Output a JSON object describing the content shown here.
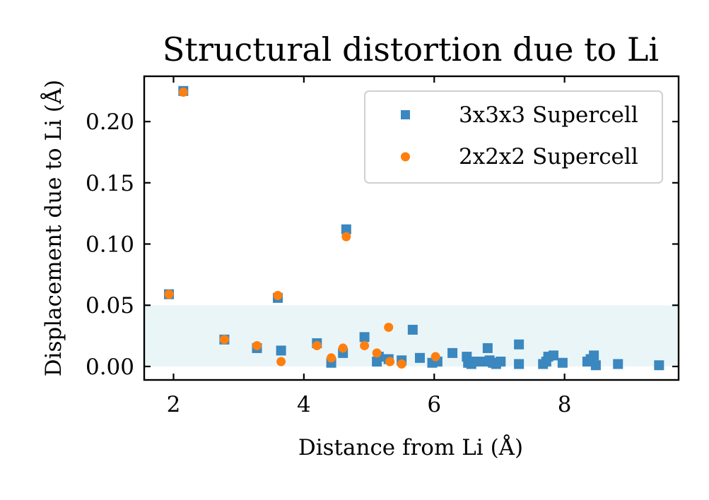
{
  "chart_data": {
    "type": "scatter",
    "title": "Structural distortion due to Li",
    "xlabel": "Distance from Li (Å)",
    "ylabel": "Displacement due to Li (Å)",
    "xlim": [
      1.55,
      9.75
    ],
    "ylim": [
      -0.011,
      0.237
    ],
    "x_ticks": [
      2,
      4,
      6,
      8
    ],
    "x_tick_labels": [
      "2",
      "4",
      "6",
      "8"
    ],
    "y_ticks": [
      0.0,
      0.05,
      0.1,
      0.15,
      0.2
    ],
    "y_tick_labels": [
      "0.00",
      "0.05",
      "0.10",
      "0.15",
      "0.20"
    ],
    "grid": false,
    "legend_position": "top-right",
    "highlight_band": {
      "y_from": 0.0,
      "y_to": 0.05,
      "color": "#eaf5f8"
    },
    "series": [
      {
        "name": "3x3x3 Supercell",
        "marker": "square",
        "color": "#3b87bf",
        "points": [
          [
            1.93,
            0.059
          ],
          [
            2.15,
            0.225
          ],
          [
            2.78,
            0.022
          ],
          [
            3.28,
            0.015
          ],
          [
            3.6,
            0.056
          ],
          [
            3.65,
            0.013
          ],
          [
            4.2,
            0.019
          ],
          [
            4.42,
            0.003
          ],
          [
            4.6,
            0.011
          ],
          [
            4.65,
            0.112
          ],
          [
            4.93,
            0.024
          ],
          [
            5.12,
            0.004
          ],
          [
            5.15,
            0.008
          ],
          [
            5.3,
            0.006
          ],
          [
            5.5,
            0.005
          ],
          [
            5.67,
            0.03
          ],
          [
            5.78,
            0.007
          ],
          [
            5.97,
            0.003
          ],
          [
            6.05,
            0.004
          ],
          [
            6.28,
            0.011
          ],
          [
            6.5,
            0.008
          ],
          [
            6.52,
            0.003
          ],
          [
            6.57,
            0.002
          ],
          [
            6.62,
            0.004
          ],
          [
            6.75,
            0.004
          ],
          [
            6.82,
            0.015
          ],
          [
            6.85,
            0.005
          ],
          [
            6.9,
            0.003
          ],
          [
            6.95,
            0.002
          ],
          [
            7.02,
            0.004
          ],
          [
            7.3,
            0.002
          ],
          [
            7.3,
            0.018
          ],
          [
            7.67,
            0.002
          ],
          [
            7.72,
            0.004
          ],
          [
            7.75,
            0.008
          ],
          [
            7.83,
            0.009
          ],
          [
            7.97,
            0.003
          ],
          [
            8.35,
            0.004
          ],
          [
            8.4,
            0.006
          ],
          [
            8.45,
            0.009
          ],
          [
            8.48,
            0.001
          ],
          [
            8.82,
            0.002
          ],
          [
            9.45,
            0.001
          ]
        ]
      },
      {
        "name": "2x2x2 Supercell",
        "marker": "circle",
        "color": "#ff7f0e",
        "points": [
          [
            1.93,
            0.059
          ],
          [
            2.15,
            0.224
          ],
          [
            2.78,
            0.022
          ],
          [
            3.28,
            0.017
          ],
          [
            3.6,
            0.058
          ],
          [
            3.65,
            0.004
          ],
          [
            4.2,
            0.017
          ],
          [
            4.42,
            0.007
          ],
          [
            4.6,
            0.015
          ],
          [
            4.65,
            0.106
          ],
          [
            4.93,
            0.017
          ],
          [
            5.12,
            0.011
          ],
          [
            5.3,
            0.032
          ],
          [
            5.32,
            0.004
          ],
          [
            5.5,
            0.002
          ],
          [
            6.02,
            0.008
          ]
        ]
      }
    ]
  }
}
